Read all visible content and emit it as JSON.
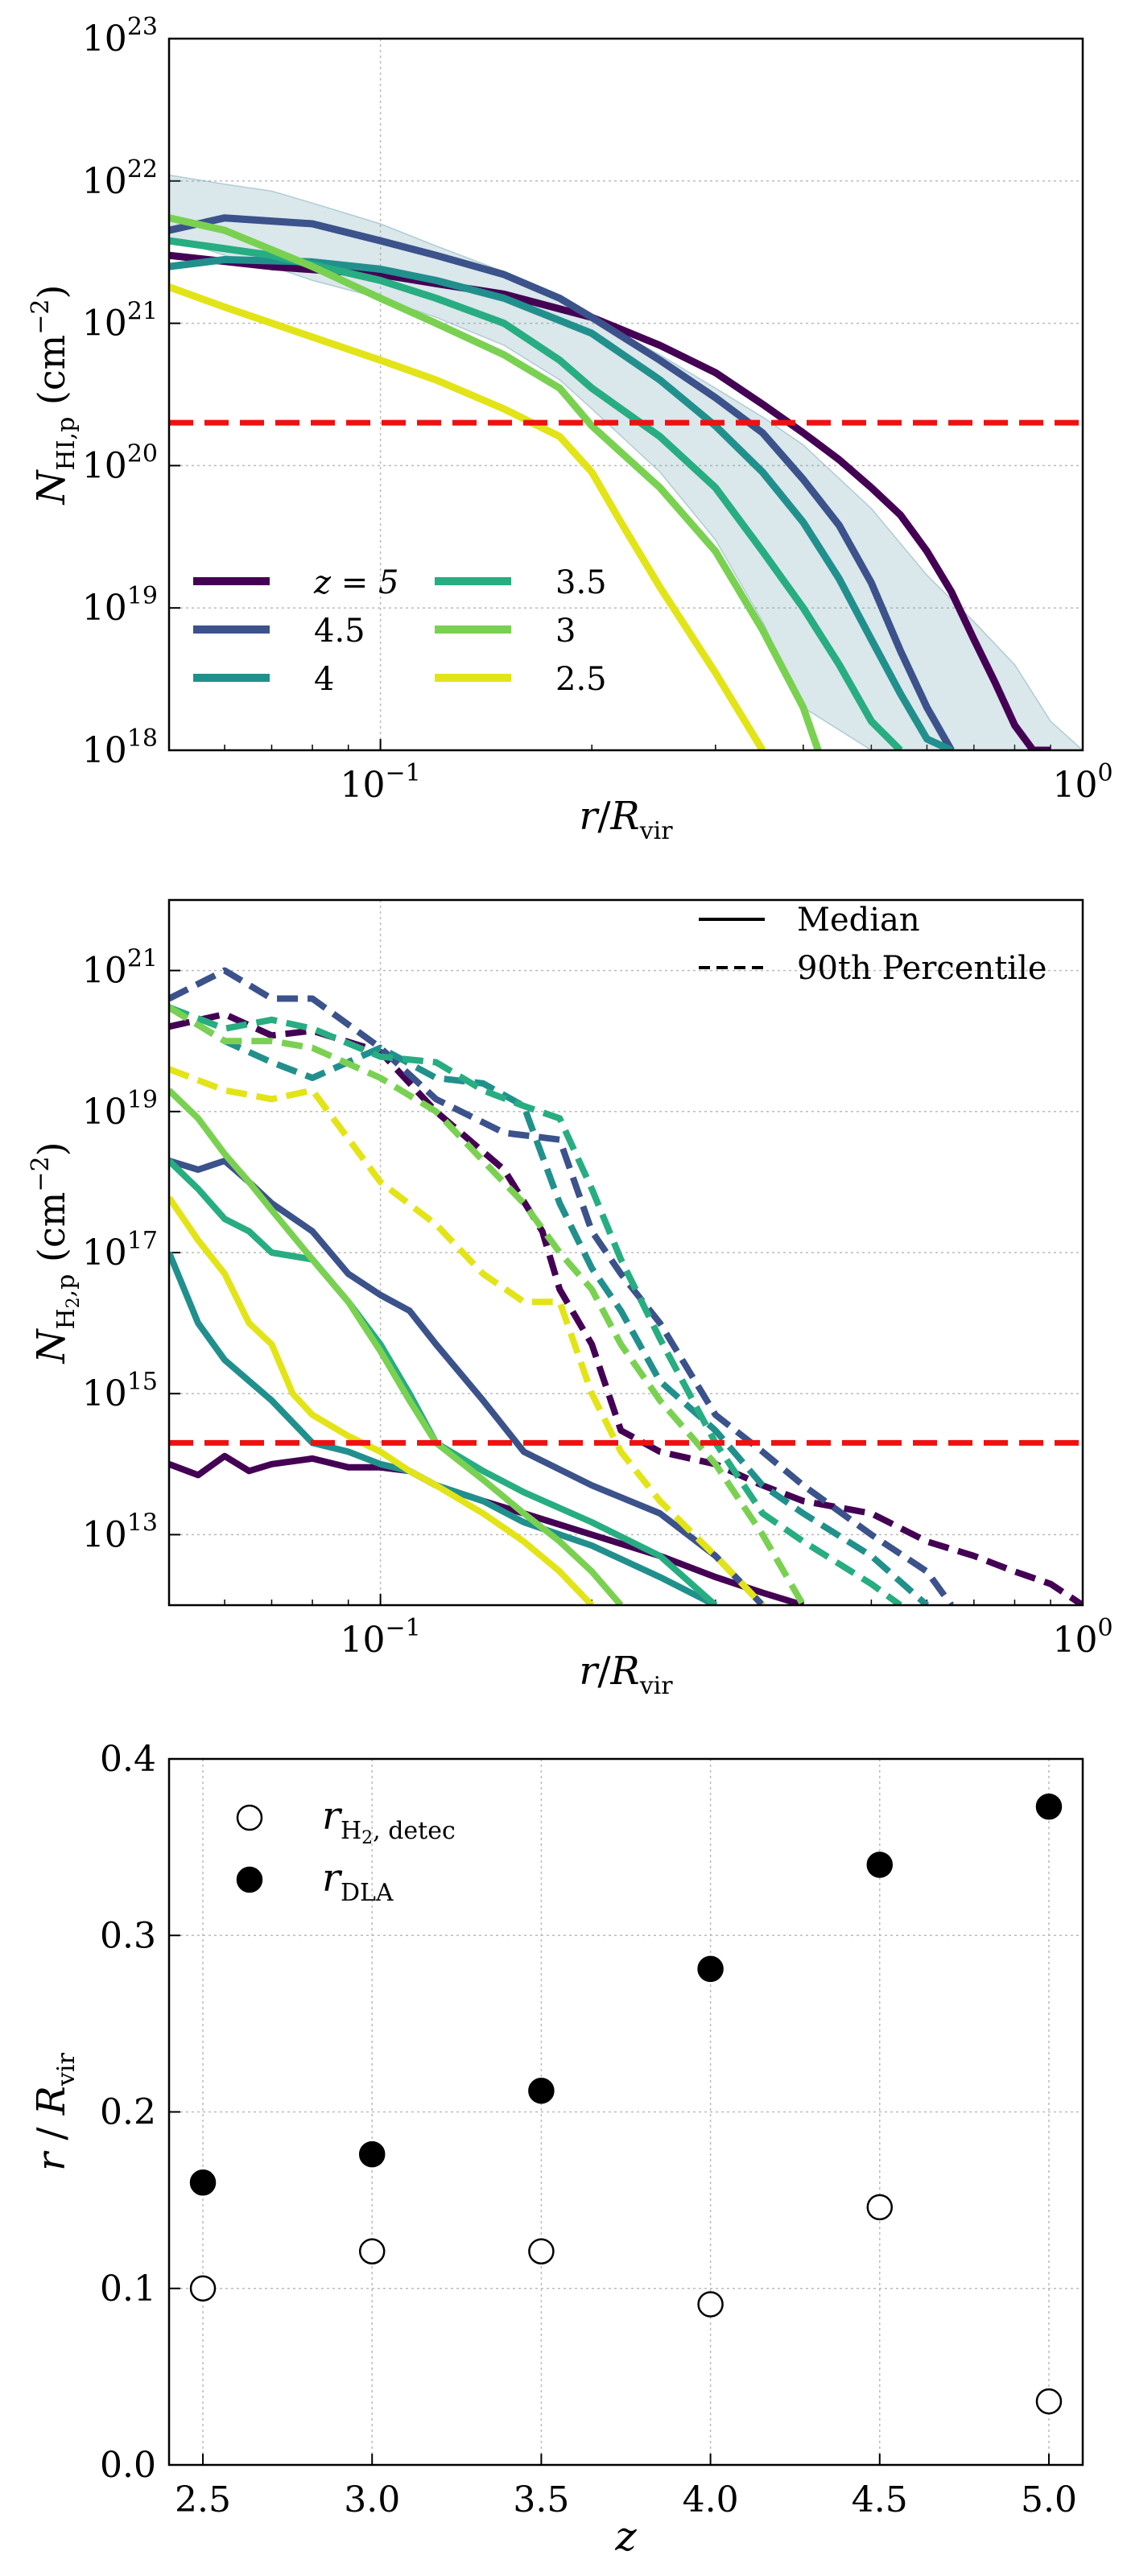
{
  "figure": {
    "panels": 3
  },
  "chart_data": [
    {
      "type": "line",
      "id": "hi",
      "xlabel": "r/R_vir",
      "ylabel": "N_HI,p (cm^-2)",
      "xscale": "log",
      "yscale": "log",
      "xlim": [
        0.05,
        1.0
      ],
      "ylim": [
        1e+18,
        1e+23
      ],
      "grid": true,
      "xticks": [
        {
          "value": 0.1,
          "base": "10",
          "exp": "−1"
        },
        {
          "value": 1,
          "base": "10",
          "exp": "0"
        }
      ],
      "yticks": [
        {
          "value": 1e+18,
          "base": "10",
          "exp": "18"
        },
        {
          "value": 1e+19,
          "base": "10",
          "exp": "19"
        },
        {
          "value": 1e+20,
          "base": "10",
          "exp": "20"
        },
        {
          "value": 1e+21,
          "base": "10",
          "exp": "21"
        },
        {
          "value": 1e+22,
          "base": "10",
          "exp": "22"
        },
        {
          "value": 1e+23,
          "base": "10",
          "exp": "23"
        }
      ],
      "threshold": {
        "value": 2e+20,
        "color": "#ee1111",
        "style": "dashed"
      },
      "band": {
        "color": "#6a9fae",
        "x": [
          0.05,
          0.06,
          0.07,
          0.08,
          0.1,
          0.12,
          0.15,
          0.18,
          0.2,
          0.25,
          0.3,
          0.35,
          0.4,
          0.5,
          0.6,
          0.7,
          0.8,
          0.9,
          1.0
        ],
        "upper": [
          1.1e+22,
          9.5e+21,
          8.5e+21,
          7e+21,
          5e+21,
          3.5e+21,
          2.3e+21,
          1.5e+21,
          1.1e+21,
          6e+20,
          3.5e+20,
          2.2e+20,
          1.4e+20,
          5e+19,
          1.7e+19,
          8e+18,
          4e+18,
          1.6e+18,
          1e+18
        ],
        "lower": [
          4e+21,
          3e+21,
          2.5e+21,
          2e+21,
          1.5e+21,
          1.1e+21,
          7e+20,
          4e+20,
          2.5e+20,
          9e+19,
          3e+19,
          8e+18,
          2e+18,
          1e+18,
          1e+18,
          1e+18,
          1e+18,
          1e+18,
          1e+18
        ]
      },
      "legend": {
        "placement": "lower-left",
        "columns": 2,
        "order": [
          "z5",
          "z45",
          "z4",
          "z35",
          "z3",
          "z25"
        ]
      },
      "series": [
        {
          "key": "z5",
          "name": "z = 5",
          "color": "#440154",
          "x": [
            0.05,
            0.07,
            0.1,
            0.12,
            0.15,
            0.2,
            0.25,
            0.3,
            0.35,
            0.4,
            0.45,
            0.5,
            0.55,
            0.6,
            0.65,
            0.7,
            0.75,
            0.8,
            0.85,
            0.9
          ],
          "y": [
            3e+21,
            2.5e+21,
            2.2e+21,
            1.9e+21,
            1.6e+21,
            1.1e+21,
            7e+20,
            4.5e+20,
            2.7e+20,
            1.7e+20,
            1.1e+20,
            7e+19,
            4.5e+19,
            2.5e+19,
            1.3e+19,
            6e+18,
            3e+18,
            1.5e+18,
            1e+18,
            1e+18
          ]
        },
        {
          "key": "z45",
          "name": "4.5",
          "color": "#3b528b",
          "x": [
            0.05,
            0.06,
            0.08,
            0.1,
            0.12,
            0.15,
            0.18,
            0.2,
            0.25,
            0.3,
            0.35,
            0.4,
            0.45,
            0.5,
            0.55,
            0.6,
            0.65
          ],
          "y": [
            4.5e+21,
            5.5e+21,
            5e+21,
            3.8e+21,
            3e+21,
            2.2e+21,
            1.5e+21,
            1.1e+21,
            5.5e+20,
            3e+20,
            1.7e+20,
            8e+19,
            3.8e+19,
            1.5e+19,
            5e+18,
            2e+18,
            1e+18
          ]
        },
        {
          "key": "z4",
          "name": "4",
          "color": "#21908d",
          "x": [
            0.05,
            0.06,
            0.08,
            0.1,
            0.12,
            0.15,
            0.2,
            0.25,
            0.3,
            0.35,
            0.4,
            0.45,
            0.5,
            0.55,
            0.6,
            0.65
          ],
          "y": [
            2.5e+21,
            2.8e+21,
            2.7e+21,
            2.4e+21,
            2e+21,
            1.5e+21,
            8.5e+20,
            4e+20,
            1.9e+20,
            9e+19,
            4e+19,
            1.6e+19,
            6e+18,
            2.5e+18,
            1.2e+18,
            1e+18
          ]
        },
        {
          "key": "z35",
          "name": "3.5",
          "color": "#27ad81",
          "x": [
            0.05,
            0.07,
            0.1,
            0.12,
            0.15,
            0.18,
            0.2,
            0.25,
            0.3,
            0.35,
            0.4,
            0.45,
            0.5,
            0.55
          ],
          "y": [
            3.8e+21,
            3e+21,
            2e+21,
            1.5e+21,
            1e+21,
            5.5e+20,
            3.5e+20,
            1.6e+20,
            7e+19,
            2.5e+19,
            1e+19,
            4e+18,
            1.6e+18,
            1e+18
          ]
        },
        {
          "key": "z3",
          "name": "3",
          "color": "#7ad151",
          "x": [
            0.05,
            0.06,
            0.08,
            0.1,
            0.12,
            0.15,
            0.18,
            0.2,
            0.25,
            0.3,
            0.35,
            0.4,
            0.42
          ],
          "y": [
            5.5e+21,
            4.5e+21,
            2.5e+21,
            1.5e+21,
            1e+21,
            6e+20,
            3.5e+20,
            1.9e+20,
            7e+19,
            2.5e+19,
            7e+18,
            2e+18,
            1e+18
          ]
        },
        {
          "key": "z25",
          "name": "2.5",
          "color": "#e2e418",
          "x": [
            0.05,
            0.06,
            0.08,
            0.1,
            0.12,
            0.15,
            0.18,
            0.2,
            0.22,
            0.25,
            0.3,
            0.35
          ],
          "y": [
            1.8e+21,
            1.3e+21,
            8e+20,
            5.5e+20,
            4e+20,
            2.5e+20,
            1.6e+20,
            9e+19,
            4e+19,
            1.4e+19,
            3.5e+18,
            1e+18
          ]
        }
      ]
    },
    {
      "type": "line",
      "id": "h2",
      "xlabel": "r/R_vir",
      "ylabel": "N_H2,p (cm^-2)",
      "xscale": "log",
      "yscale": "log",
      "xlim": [
        0.05,
        1.0
      ],
      "ylim": [
        1000000000000.0,
        1e+22
      ],
      "grid": true,
      "xticks": [
        {
          "value": 0.1,
          "base": "10",
          "exp": "−1"
        },
        {
          "value": 1,
          "base": "10",
          "exp": "0"
        }
      ],
      "yticks": [
        {
          "value": 10000000000000.0,
          "base": "10",
          "exp": "13"
        },
        {
          "value": 1000000000000000.0,
          "base": "10",
          "exp": "15"
        },
        {
          "value": 1e+17,
          "base": "10",
          "exp": "17"
        },
        {
          "value": 1e+19,
          "base": "10",
          "exp": "19"
        },
        {
          "value": 1e+21,
          "base": "10",
          "exp": "21"
        }
      ],
      "threshold": {
        "value": 200000000000000.0,
        "color": "#ee1111",
        "style": "dashed"
      },
      "legend": {
        "placement": "top-right",
        "entries": [
          {
            "label": "Median",
            "style": "solid"
          },
          {
            "label": "90th Percentile",
            "style": "dashed"
          }
        ]
      },
      "median": [
        {
          "key": "z5",
          "color": "#440154",
          "x": [
            0.05,
            0.055,
            0.06,
            0.065,
            0.07,
            0.08,
            0.09,
            0.1,
            0.11,
            0.12,
            0.14,
            0.16,
            0.2,
            0.25,
            0.3,
            0.35,
            0.4
          ],
          "y": [
            100000000000000.0,
            70000000000000.0,
            130000000000000.0,
            80000000000000.0,
            100000000000000.0,
            120000000000000.0,
            90000000000000.0,
            90000000000000.0,
            80000000000000.0,
            50000000000000.0,
            30000000000000.0,
            20000000000000.0,
            10000000000000.0,
            5000000000000.0,
            2500000000000.0,
            1500000000000.0,
            1000000000000.0
          ]
        },
        {
          "key": "z45",
          "color": "#3b528b",
          "x": [
            0.05,
            0.055,
            0.06,
            0.065,
            0.07,
            0.08,
            0.09,
            0.1,
            0.11,
            0.12,
            0.14,
            0.16,
            0.2,
            0.25,
            0.3,
            0.35
          ],
          "y": [
            2e+18,
            1.5e+18,
            2e+18,
            1e+18,
            5e+17,
            2e+17,
            5e+16,
            2.5e+16,
            1.5e+16,
            5000000000000000.0,
            800000000000000.0,
            150000000000000.0,
            50000000000000.0,
            20000000000000.0,
            5000000000000.0,
            1000000000000.0
          ]
        },
        {
          "key": "z4",
          "color": "#21908d",
          "x": [
            0.05,
            0.055,
            0.06,
            0.07,
            0.08,
            0.09,
            0.1,
            0.11,
            0.12,
            0.14,
            0.16,
            0.2,
            0.25,
            0.3
          ],
          "y": [
            1e+17,
            1e+16,
            3000000000000000.0,
            800000000000000.0,
            200000000000000.0,
            150000000000000.0,
            100000000000000.0,
            80000000000000.0,
            50000000000000.0,
            30000000000000.0,
            15000000000000.0,
            7000000000000.0,
            2500000000000.0,
            1000000000000.0
          ]
        },
        {
          "key": "z35",
          "color": "#27ad81",
          "x": [
            0.05,
            0.055,
            0.06,
            0.065,
            0.07,
            0.08,
            0.09,
            0.1,
            0.11,
            0.12,
            0.14,
            0.16,
            0.2,
            0.25,
            0.3
          ],
          "y": [
            2e+18,
            8e+17,
            3e+17,
            2e+17,
            1e+17,
            8e+16,
            2e+16,
            5000000000000000.0,
            1000000000000000.0,
            200000000000000.0,
            80000000000000.0,
            40000000000000.0,
            15000000000000.0,
            5000000000000.0,
            1000000000000.0
          ]
        },
        {
          "key": "z3",
          "color": "#7ad151",
          "x": [
            0.05,
            0.055,
            0.06,
            0.065,
            0.07,
            0.08,
            0.09,
            0.1,
            0.11,
            0.12,
            0.14,
            0.16,
            0.18,
            0.2,
            0.22
          ],
          "y": [
            2e+19,
            8e+18,
            2.5e+18,
            1e+18,
            4e+17,
            8e+16,
            2e+16,
            4000000000000000.0,
            800000000000000.0,
            200000000000000.0,
            60000000000000.0,
            20000000000000.0,
            8000000000000.0,
            3000000000000.0,
            1000000000000.0
          ]
        },
        {
          "key": "z25",
          "color": "#e2e418",
          "x": [
            0.05,
            0.055,
            0.06,
            0.065,
            0.07,
            0.075,
            0.08,
            0.09,
            0.1,
            0.11,
            0.12,
            0.14,
            0.16,
            0.18,
            0.2
          ],
          "y": [
            6e+17,
            1.5e+17,
            5e+16,
            1e+16,
            5000000000000000.0,
            1000000000000000.0,
            500000000000000.0,
            250000000000000.0,
            150000000000000.0,
            80000000000000.0,
            50000000000000.0,
            20000000000000.0,
            8000000000000.0,
            3000000000000.0,
            1000000000000.0
          ]
        }
      ],
      "p90": [
        {
          "key": "z5",
          "color": "#440154",
          "x": [
            0.05,
            0.06,
            0.07,
            0.08,
            0.1,
            0.12,
            0.15,
            0.17,
            0.18,
            0.2,
            0.22,
            0.25,
            0.3,
            0.35,
            0.4,
            0.5,
            0.6,
            0.7,
            0.8,
            0.9,
            1.0
          ],
          "y": [
            1.6e+20,
            2.4e+20,
            1.2e+20,
            1.4e+20,
            7e+19,
            1e+19,
            1.5e+18,
            2e+17,
            3e+16,
            5000000000000000.0,
            300000000000000.0,
            150000000000000.0,
            100000000000000.0,
            50000000000000.0,
            30000000000000.0,
            20000000000000.0,
            8000000000000.0,
            5000000000000.0,
            3000000000000.0,
            2000000000000.0,
            1000000000000.0
          ]
        },
        {
          "key": "z45",
          "color": "#3b528b",
          "x": [
            0.05,
            0.06,
            0.07,
            0.08,
            0.1,
            0.12,
            0.15,
            0.18,
            0.2,
            0.22,
            0.25,
            0.3,
            0.35,
            0.4,
            0.5,
            0.6,
            0.65
          ],
          "y": [
            4e+20,
            1e+21,
            4e+20,
            4e+20,
            8e+19,
            1.5e+19,
            5e+18,
            4e+18,
            2e+17,
            5e+16,
            1e+16,
            500000000000000.0,
            150000000000000.0,
            50000000000000.0,
            10000000000000.0,
            3000000000000.0,
            1000000000000.0
          ]
        },
        {
          "key": "z4",
          "color": "#21908d",
          "x": [
            0.05,
            0.06,
            0.07,
            0.08,
            0.1,
            0.12,
            0.14,
            0.16,
            0.18,
            0.2,
            0.22,
            0.25,
            0.3,
            0.35,
            0.4,
            0.5,
            0.6
          ],
          "y": [
            3e+20,
            1e+20,
            5e+19,
            3e+19,
            8e+19,
            3e+19,
            2.5e+19,
            1.2e+19,
            5e+17,
            6e+16,
            1.5e+16,
            1500000000000000.0,
            300000000000000.0,
            50000000000000.0,
            20000000000000.0,
            5000000000000.0,
            1000000000000.0
          ]
        },
        {
          "key": "z35",
          "color": "#27ad81",
          "x": [
            0.05,
            0.06,
            0.07,
            0.08,
            0.1,
            0.12,
            0.14,
            0.16,
            0.18,
            0.2,
            0.22,
            0.25,
            0.3,
            0.35,
            0.4,
            0.5,
            0.55
          ],
          "y": [
            3e+20,
            1.5e+20,
            2e+20,
            1.5e+20,
            6e+19,
            5e+19,
            2e+19,
            1.2e+19,
            8e+18,
            8e+17,
            8e+16,
            6000000000000000.0,
            200000000000000.0,
            20000000000000.0,
            8000000000000.0,
            2000000000000.0,
            1000000000000.0
          ]
        },
        {
          "key": "z3",
          "color": "#7ad151",
          "x": [
            0.05,
            0.06,
            0.07,
            0.08,
            0.1,
            0.12,
            0.14,
            0.16,
            0.18,
            0.2,
            0.22,
            0.25,
            0.3,
            0.35,
            0.4
          ],
          "y": [
            3e+20,
            1e+20,
            1e+20,
            8e+19,
            3e+19,
            1e+19,
            2e+18,
            5e+17,
            1e+17,
            3e+16,
            5000000000000000.0,
            800000000000000.0,
            100000000000000.0,
            10000000000000.0,
            1000000000000.0
          ]
        },
        {
          "key": "z25",
          "color": "#e2e418",
          "x": [
            0.05,
            0.06,
            0.07,
            0.08,
            0.1,
            0.12,
            0.14,
            0.16,
            0.18,
            0.2,
            0.22,
            0.25,
            0.3,
            0.35
          ],
          "y": [
            4e+19,
            2e+19,
            1.5e+19,
            2e+19,
            1e+18,
            2.5e+17,
            5e+16,
            2e+16,
            2e+16,
            1000000000000000.0,
            150000000000000.0,
            30000000000000.0,
            5000000000000.0,
            1000000000000.0
          ]
        }
      ]
    },
    {
      "type": "scatter",
      "id": "radius",
      "xlabel": "z",
      "ylabel": "r / R_vir",
      "xlim": [
        2.4,
        5.1
      ],
      "ylim": [
        0.0,
        0.4
      ],
      "grid": true,
      "xticks": [
        "2.5",
        "3.0",
        "3.5",
        "4.0",
        "4.5",
        "5.0"
      ],
      "yticks": [
        "0.0",
        "0.1",
        "0.2",
        "0.3",
        "0.4"
      ],
      "legend": {
        "placement": "top-left"
      },
      "series": [
        {
          "name": "r_H2,detec",
          "fill": "none",
          "x": [
            2.5,
            3.0,
            3.5,
            4.0,
            4.5,
            5.0
          ],
          "y": [
            0.1,
            0.121,
            0.121,
            0.091,
            0.146,
            0.036
          ]
        },
        {
          "name": "r_DLA",
          "fill": "black",
          "x": [
            2.5,
            3.0,
            3.5,
            4.0,
            4.5,
            5.0
          ],
          "y": [
            0.16,
            0.176,
            0.212,
            0.281,
            0.34,
            0.373
          ]
        }
      ]
    }
  ]
}
